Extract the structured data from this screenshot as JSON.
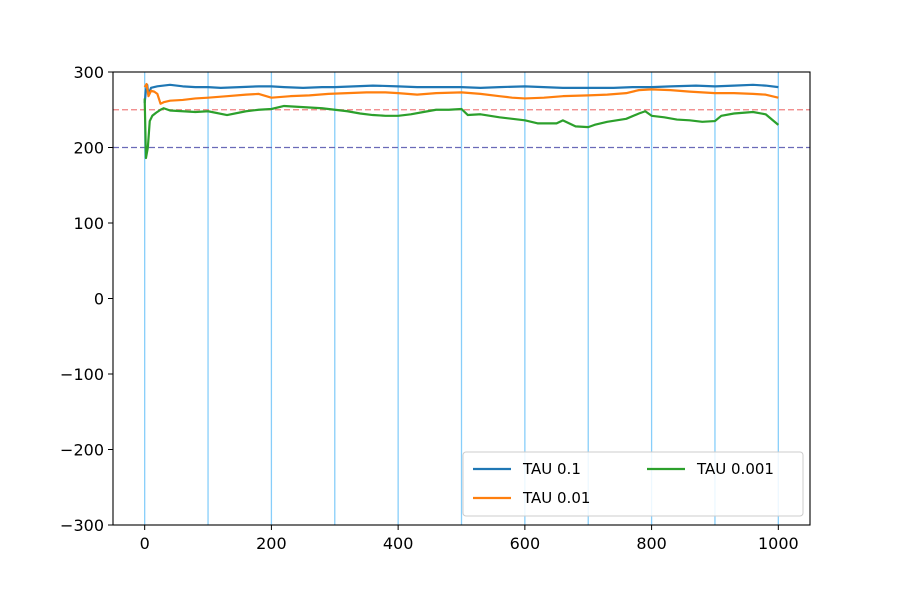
{
  "chart_data": {
    "type": "line",
    "xlim": [
      -50,
      1050
    ],
    "ylim": [
      -300,
      300
    ],
    "xticks": [
      0,
      200,
      400,
      600,
      800,
      1000
    ],
    "yticks": [
      -300,
      -200,
      -100,
      0,
      100,
      200,
      300
    ],
    "xtick_labels": [
      "0",
      "200",
      "400",
      "600",
      "800",
      "1000"
    ],
    "ytick_labels": [
      "−300",
      "−200",
      "−100",
      "0",
      "100",
      "200",
      "300"
    ],
    "grid": false,
    "legend": {
      "placement": "lower-right",
      "columns": 2
    },
    "vertical_lines": {
      "x": [
        0,
        100,
        200,
        300,
        400,
        500,
        600,
        700,
        800,
        900,
        1000
      ],
      "color": "#87cefa"
    },
    "horizontal_lines": [
      {
        "y": 250,
        "color": "#f08080",
        "style": "dashed"
      },
      {
        "y": 200,
        "color": "#6a6ab8",
        "style": "dashed"
      }
    ],
    "series": [
      {
        "name": "TAU 0.1",
        "color": "#1f77b4",
        "points": [
          [
            0,
            259
          ],
          [
            2,
            276
          ],
          [
            4,
            283
          ],
          [
            6,
            270
          ],
          [
            10,
            279
          ],
          [
            20,
            281
          ],
          [
            40,
            283
          ],
          [
            60,
            281
          ],
          [
            80,
            280
          ],
          [
            100,
            280
          ],
          [
            120,
            279
          ],
          [
            150,
            280
          ],
          [
            180,
            281
          ],
          [
            200,
            281
          ],
          [
            220,
            280
          ],
          [
            250,
            279
          ],
          [
            280,
            280
          ],
          [
            300,
            280
          ],
          [
            330,
            281
          ],
          [
            360,
            282
          ],
          [
            400,
            281
          ],
          [
            430,
            280
          ],
          [
            460,
            280
          ],
          [
            500,
            280
          ],
          [
            530,
            279
          ],
          [
            560,
            280
          ],
          [
            600,
            281
          ],
          [
            630,
            280
          ],
          [
            660,
            279
          ],
          [
            700,
            279
          ],
          [
            740,
            279
          ],
          [
            770,
            280
          ],
          [
            800,
            280
          ],
          [
            830,
            281
          ],
          [
            870,
            282
          ],
          [
            900,
            281
          ],
          [
            930,
            282
          ],
          [
            960,
            283
          ],
          [
            980,
            282
          ],
          [
            1000,
            280
          ]
        ]
      },
      {
        "name": "TAU 0.01",
        "color": "#ff7f0e",
        "points": [
          [
            0,
            280
          ],
          [
            3,
            284
          ],
          [
            6,
            268
          ],
          [
            10,
            275
          ],
          [
            15,
            274
          ],
          [
            20,
            271
          ],
          [
            25,
            258
          ],
          [
            30,
            260
          ],
          [
            40,
            262
          ],
          [
            60,
            263
          ],
          [
            80,
            265
          ],
          [
            100,
            266
          ],
          [
            130,
            268
          ],
          [
            160,
            270
          ],
          [
            180,
            271
          ],
          [
            200,
            266
          ],
          [
            230,
            268
          ],
          [
            260,
            269
          ],
          [
            290,
            271
          ],
          [
            320,
            272
          ],
          [
            350,
            273
          ],
          [
            380,
            273
          ],
          [
            400,
            272
          ],
          [
            430,
            270
          ],
          [
            460,
            272
          ],
          [
            500,
            273
          ],
          [
            530,
            271
          ],
          [
            560,
            268
          ],
          [
            580,
            266
          ],
          [
            600,
            265
          ],
          [
            630,
            266
          ],
          [
            660,
            268
          ],
          [
            700,
            269
          ],
          [
            730,
            270
          ],
          [
            760,
            272
          ],
          [
            780,
            276
          ],
          [
            800,
            277
          ],
          [
            830,
            276
          ],
          [
            860,
            274
          ],
          [
            900,
            272
          ],
          [
            930,
            272
          ],
          [
            960,
            271
          ],
          [
            980,
            270
          ],
          [
            1000,
            266
          ]
        ]
      },
      {
        "name": "TAU 0.001",
        "color": "#2ca02c",
        "points": [
          [
            0,
            265
          ],
          [
            2,
            186
          ],
          [
            5,
            200
          ],
          [
            8,
            235
          ],
          [
            12,
            242
          ],
          [
            18,
            246
          ],
          [
            25,
            250
          ],
          [
            30,
            252
          ],
          [
            40,
            249
          ],
          [
            60,
            248
          ],
          [
            80,
            247
          ],
          [
            100,
            248
          ],
          [
            130,
            243
          ],
          [
            160,
            248
          ],
          [
            180,
            250
          ],
          [
            200,
            251
          ],
          [
            220,
            255
          ],
          [
            240,
            254
          ],
          [
            260,
            253
          ],
          [
            280,
            252
          ],
          [
            300,
            250
          ],
          [
            320,
            248
          ],
          [
            340,
            245
          ],
          [
            360,
            243
          ],
          [
            380,
            242
          ],
          [
            400,
            242
          ],
          [
            420,
            244
          ],
          [
            440,
            247
          ],
          [
            460,
            250
          ],
          [
            480,
            250
          ],
          [
            500,
            251
          ],
          [
            510,
            243
          ],
          [
            530,
            244
          ],
          [
            560,
            240
          ],
          [
            580,
            238
          ],
          [
            600,
            236
          ],
          [
            620,
            232
          ],
          [
            650,
            232
          ],
          [
            660,
            236
          ],
          [
            680,
            228
          ],
          [
            700,
            227
          ],
          [
            710,
            230
          ],
          [
            730,
            234
          ],
          [
            760,
            238
          ],
          [
            780,
            245
          ],
          [
            790,
            248
          ],
          [
            800,
            242
          ],
          [
            820,
            240
          ],
          [
            840,
            237
          ],
          [
            860,
            236
          ],
          [
            880,
            234
          ],
          [
            900,
            235
          ],
          [
            910,
            242
          ],
          [
            930,
            245
          ],
          [
            960,
            247
          ],
          [
            980,
            244
          ],
          [
            1000,
            230
          ]
        ]
      }
    ]
  }
}
